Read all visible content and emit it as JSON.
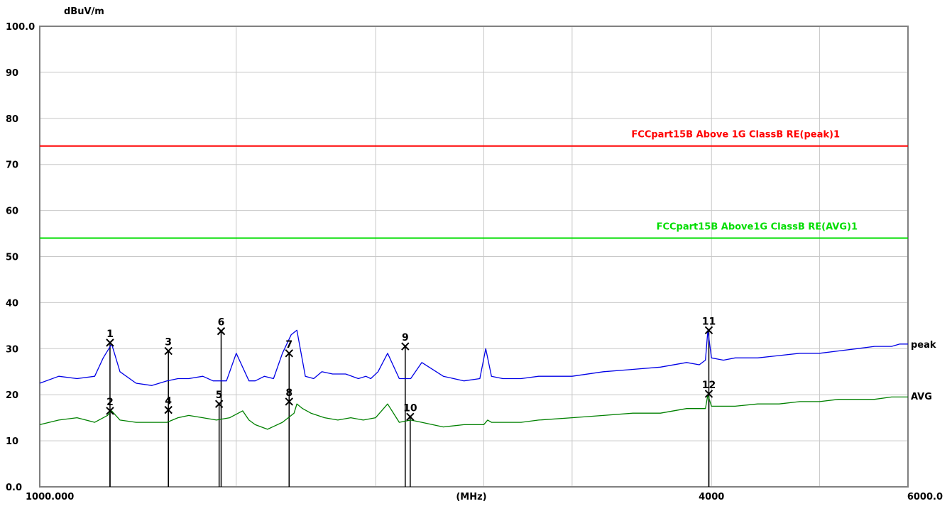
{
  "chart_data": {
    "type": "line",
    "ylabel": "dBuV/m",
    "xlabel": "(MHz)",
    "ylim": [
      0,
      100
    ],
    "x_scale": "log",
    "xlim": [
      1000,
      6000
    ],
    "grid": true,
    "y_ticks": [
      {
        "value": 100,
        "label": "100.0"
      },
      {
        "value": 90,
        "label": "90"
      },
      {
        "value": 80,
        "label": "80"
      },
      {
        "value": 70,
        "label": "70"
      },
      {
        "value": 60,
        "label": "60"
      },
      {
        "value": 50,
        "label": "50"
      },
      {
        "value": 40,
        "label": "40"
      },
      {
        "value": 30,
        "label": "30"
      },
      {
        "value": 20,
        "label": "20"
      },
      {
        "value": 10,
        "label": "10"
      },
      {
        "value": 0,
        "label": "0.0"
      }
    ],
    "x_ticks": [
      {
        "value": 1000,
        "label": "1000.000"
      },
      {
        "value": 4000,
        "label": "4000"
      },
      {
        "value": 6000,
        "label": "6000.0"
      }
    ],
    "x_gridlines": [
      1000,
      1500,
      2000,
      2500,
      3000,
      4000,
      5000,
      6000
    ],
    "colors": {
      "peak": "#0000e6",
      "avg": "#008000",
      "limit_peak": "#ff0000",
      "limit_avg": "#00dd00",
      "grid": "#c8c8c8",
      "frame": "#808080"
    },
    "limits": [
      {
        "name": "FCCpart15B Above 1G ClassB RE(peak)1",
        "value": 74,
        "color": "#ff0000"
      },
      {
        "name": "FCCpart15B Above1G ClassB RE(AVG)1",
        "value": 54,
        "color": "#00dd00"
      }
    ],
    "series": [
      {
        "name": "peak",
        "color": "#0000e6",
        "x": [
          1000,
          1040,
          1080,
          1120,
          1140,
          1160,
          1180,
          1220,
          1260,
          1300,
          1330,
          1360,
          1400,
          1430,
          1470,
          1500,
          1540,
          1560,
          1590,
          1620,
          1650,
          1680,
          1700,
          1730,
          1760,
          1790,
          1830,
          1880,
          1930,
          1960,
          1980,
          2010,
          2050,
          2100,
          2150,
          2200,
          2300,
          2400,
          2480,
          2510,
          2540,
          2600,
          2700,
          2800,
          3000,
          3200,
          3400,
          3600,
          3800,
          3900,
          3950,
          3970,
          4000,
          4100,
          4200,
          4400,
          4600,
          4800,
          5000,
          5200,
          5400,
          5600,
          5800,
          5900,
          6000
        ],
        "y": [
          22.5,
          24,
          23.5,
          24,
          28,
          31,
          25,
          22.5,
          22,
          23,
          23.5,
          23.5,
          24,
          23,
          23,
          29,
          23,
          23,
          24,
          23.5,
          29,
          33,
          34,
          24,
          23.5,
          25,
          24.5,
          24.5,
          23.5,
          24,
          23.5,
          25,
          29,
          23.5,
          23.5,
          27,
          24,
          23,
          23.5,
          30,
          24,
          23.5,
          23.5,
          24,
          24,
          25,
          25.5,
          26,
          27,
          26.5,
          27.5,
          34,
          28,
          27.5,
          28,
          28,
          28.5,
          29,
          29,
          29.5,
          30,
          30.5,
          30.5,
          31,
          31
        ]
      },
      {
        "name": "AVG",
        "color": "#008000",
        "x": [
          1000,
          1040,
          1080,
          1120,
          1150,
          1160,
          1180,
          1220,
          1260,
          1300,
          1330,
          1360,
          1400,
          1440,
          1480,
          1520,
          1540,
          1560,
          1600,
          1650,
          1690,
          1700,
          1720,
          1750,
          1800,
          1850,
          1900,
          1950,
          2000,
          2050,
          2100,
          2150,
          2200,
          2300,
          2400,
          2500,
          2520,
          2540,
          2600,
          2700,
          2800,
          3000,
          3200,
          3400,
          3600,
          3800,
          3950,
          3970,
          4000,
          4100,
          4200,
          4400,
          4600,
          4800,
          5000,
          5200,
          5400,
          5600,
          5800,
          6000
        ],
        "y": [
          13.5,
          14.5,
          15,
          14,
          15.5,
          16.5,
          14.5,
          14,
          14,
          14,
          15,
          15.5,
          15,
          14.5,
          15,
          16.5,
          14.5,
          13.5,
          12.5,
          14,
          16,
          18,
          17,
          16,
          15,
          14.5,
          15,
          14.5,
          15,
          18,
          14,
          14.5,
          14,
          13,
          13.5,
          13.5,
          14.5,
          14,
          14,
          14,
          14.5,
          15,
          15.5,
          16,
          16,
          17,
          17,
          20,
          17.5,
          17.5,
          17.5,
          18,
          18,
          18.5,
          18.5,
          19,
          19,
          19,
          19.5,
          19.5
        ]
      }
    ],
    "series_labels": {
      "peak": "peak",
      "avg": "AVG"
    },
    "markers": [
      {
        "label": "1",
        "x": 1156,
        "y": 31.3
      },
      {
        "label": "2",
        "x": 1156,
        "y": 16.5
      },
      {
        "label": "3",
        "x": 1304,
        "y": 29.5
      },
      {
        "label": "4",
        "x": 1304,
        "y": 16.7
      },
      {
        "label": "5",
        "x": 1448,
        "y": 18.0
      },
      {
        "label": "6",
        "x": 1454,
        "y": 33.8
      },
      {
        "label": "7",
        "x": 1673,
        "y": 29.0
      },
      {
        "label": "8",
        "x": 1673,
        "y": 18.5
      },
      {
        "label": "9",
        "x": 2126,
        "y": 30.5
      },
      {
        "label": "10",
        "x": 2148,
        "y": 15.2
      },
      {
        "label": "11",
        "x": 3978,
        "y": 34.0
      },
      {
        "label": "12",
        "x": 3978,
        "y": 20.2
      }
    ]
  }
}
